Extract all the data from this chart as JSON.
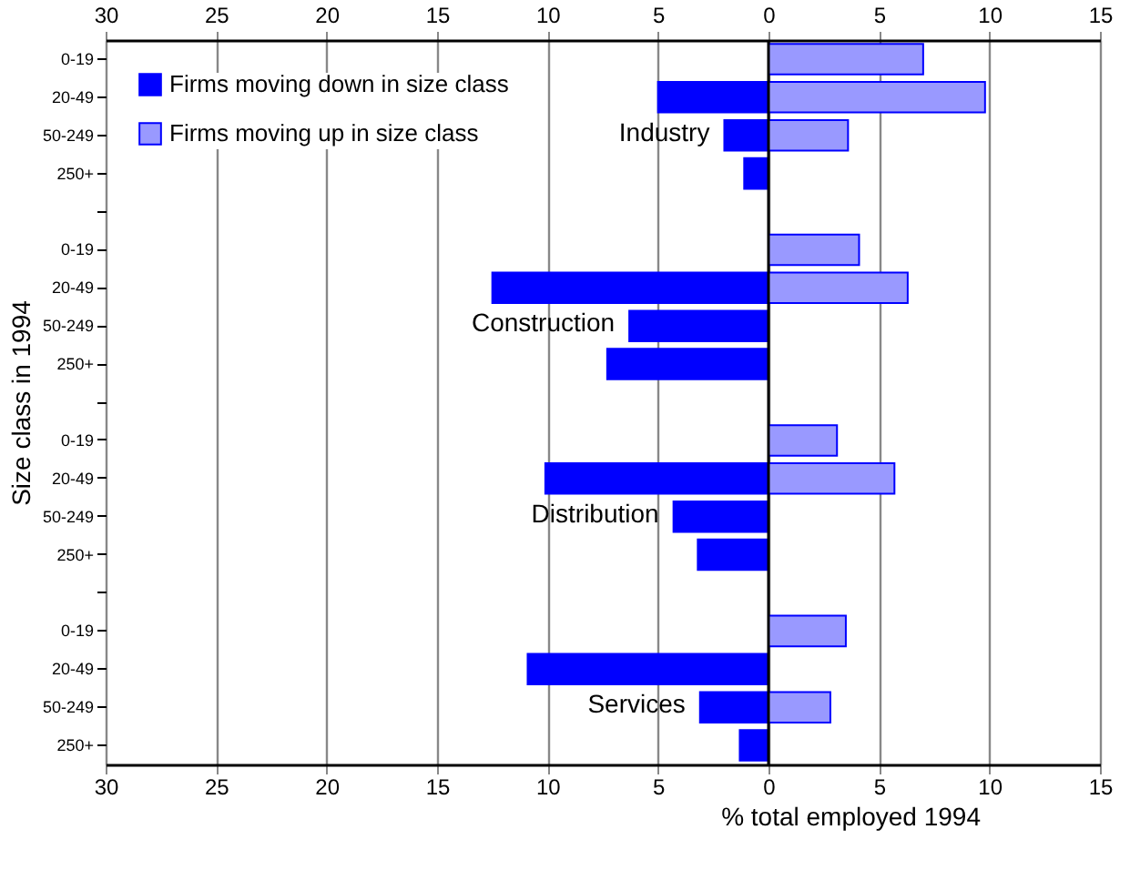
{
  "chart_data": {
    "type": "bar",
    "orientation": "horizontal",
    "xlabel": "% total employed 1994",
    "ylabel": "Size class in 1994",
    "categories": [
      "0-19",
      "20-49",
      "50-249",
      "250+",
      null,
      "0-19",
      "20-49",
      "50-249",
      "250+",
      null,
      "0-19",
      "20-49",
      "50-249",
      "250+",
      null,
      "0-19",
      "20-49",
      "50-249",
      "250+"
    ],
    "series": [
      {
        "name": "Firms moving down in size class",
        "color": "#0000ff",
        "values": [
          null,
          -5.0,
          -2.0,
          -1.1,
          null,
          null,
          -12.5,
          -6.3,
          -7.3,
          null,
          null,
          -10.1,
          -4.3,
          -3.2,
          null,
          null,
          -10.9,
          -3.1,
          -1.3
        ]
      },
      {
        "name": "Firms moving up in size class",
        "color": "#9999ff",
        "values": [
          7.0,
          9.8,
          3.6,
          null,
          null,
          4.1,
          6.3,
          null,
          null,
          null,
          3.1,
          5.7,
          null,
          null,
          null,
          3.5,
          null,
          2.8,
          null
        ]
      }
    ],
    "xlim": [
      -30,
      15
    ],
    "xticks": [
      {
        "value": -30,
        "label": "30"
      },
      {
        "value": -25,
        "label": "25"
      },
      {
        "value": -20,
        "label": "20"
      },
      {
        "value": -15,
        "label": "15"
      },
      {
        "value": -10,
        "label": "10"
      },
      {
        "value": -5,
        "label": "5"
      },
      0,
      5,
      10,
      15
    ],
    "x2lim": [
      -30,
      15
    ],
    "x2ticks": [
      {
        "value": -30,
        "label": "30"
      },
      {
        "value": -25,
        "label": "25"
      },
      {
        "value": -20,
        "label": "20"
      },
      {
        "value": -15,
        "label": "15"
      },
      {
        "value": -10,
        "label": "10"
      },
      {
        "value": -5,
        "label": "5"
      },
      0,
      5,
      10,
      15
    ],
    "grid": "x",
    "legend": "top left",
    "ref_lines": [
      {
        "axis": "x",
        "value": 0,
        "color": "#000000"
      }
    ],
    "annotations": [
      "Industry",
      "Construction",
      "Distribution",
      "Services"
    ]
  }
}
